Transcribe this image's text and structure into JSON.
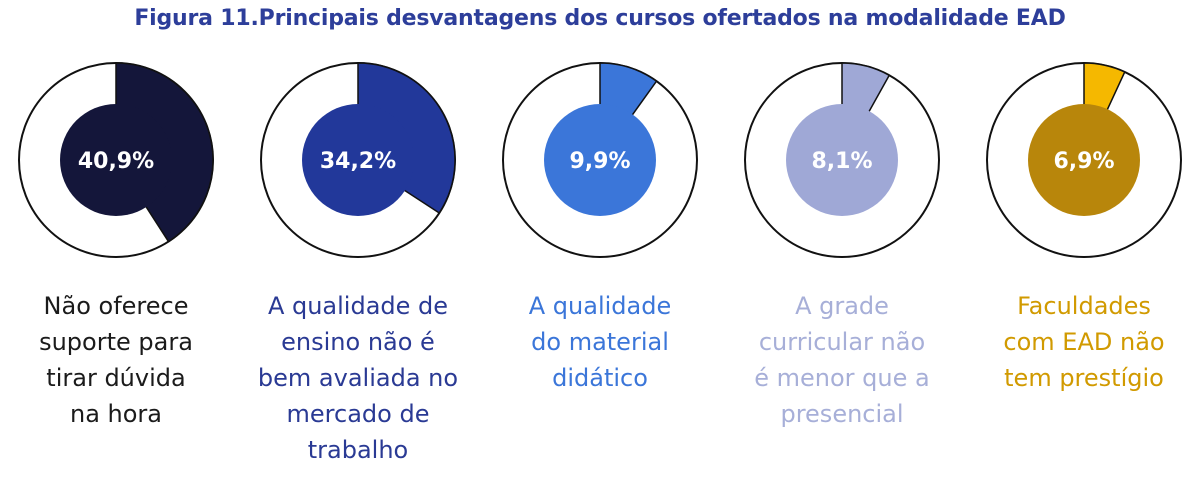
{
  "title": "Figura 11.Principais desvantagens dos cursos ofertados na modalidade EAD",
  "chart_data": {
    "type": "pie",
    "title": "Figura 11.Principais desvantagens dos cursos ofertados na modalidade EAD",
    "items": [
      {
        "label_lines": [
          "Não oferece",
          "suporte para",
          "tirar dúvida",
          "na hora"
        ],
        "value": 40.9,
        "value_label": "40,9%",
        "color": "#14163a",
        "text_color": "#1b1b1b"
      },
      {
        "label_lines": [
          "A qualidade de",
          "ensino não é",
          "bem avaliada no",
          "mercado de",
          "trabalho"
        ],
        "value": 34.2,
        "value_label": "34,2%",
        "color": "#22389a",
        "text_color": "#2a3a94"
      },
      {
        "label_lines": [
          "A qualidade",
          "do material",
          "didático"
        ],
        "value": 9.9,
        "value_label": "9,9%",
        "color": "#3b76d9",
        "text_color": "#3b76d9"
      },
      {
        "label_lines": [
          "A grade",
          "curricular não",
          "é menor que a",
          "presencial"
        ],
        "value": 8.1,
        "value_label": "8,1%",
        "color": "#9fa8d6",
        "text_color": "#a7afd8"
      },
      {
        "label_lines": [
          "Faculdades",
          "com EAD não",
          "tem prestígio"
        ],
        "value": 6.9,
        "value_label": "6,9%",
        "color": "#b8860b",
        "wedge_color": "#f5b800",
        "text_color": "#d19a00"
      }
    ]
  }
}
